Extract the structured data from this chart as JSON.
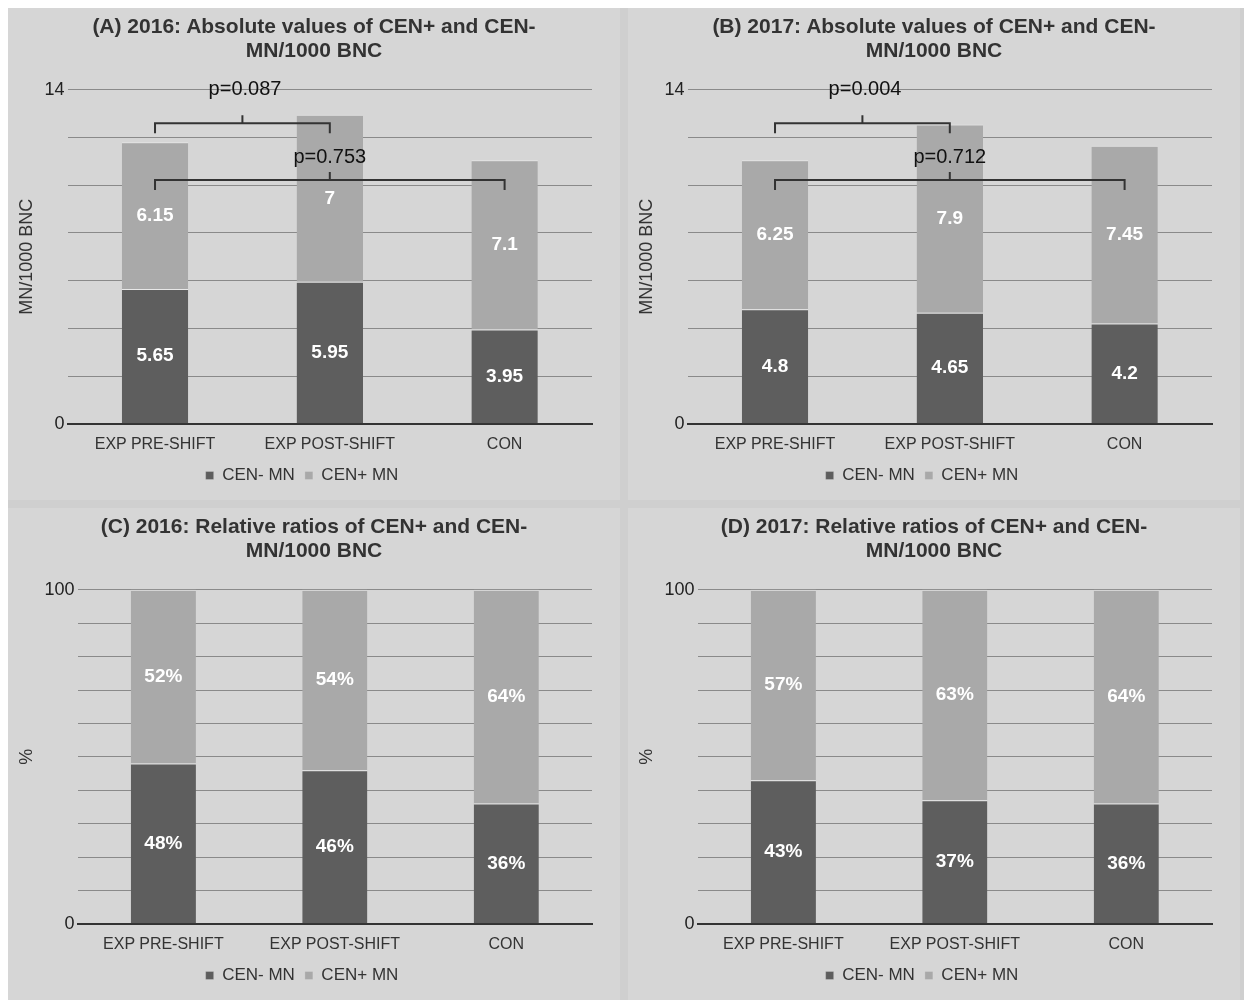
{
  "chart_data": [
    {
      "type": "bar",
      "title": "(A) 2016: Absolute values of CEN+ and CEN- MN/1000 BNC",
      "ylabel": "MN/1000 BNC",
      "categories": [
        "EXP PRE-SHIFT",
        "EXP POST-SHIFT",
        "CON"
      ],
      "stacked": true,
      "ylim": [
        0,
        14
      ],
      "yticks": [
        0,
        {
          "value": 2,
          "label": null
        },
        {
          "value": 4,
          "label": null
        },
        {
          "value": 6,
          "label": null
        },
        {
          "value": 8,
          "label": null
        },
        {
          "value": 10,
          "label": null
        },
        {
          "value": 12,
          "label": null
        },
        14
      ],
      "grid": "y",
      "legend": "bottom",
      "data_labels": true,
      "annotations": [
        "p=0.087",
        "p=0.753"
      ],
      "series": [
        {
          "name": "CEN- MN",
          "color": "#5e5e5e",
          "values": [
            5.65,
            5.95,
            3.95
          ]
        },
        {
          "name": "CEN+ MN",
          "color": "#a9a9a9",
          "values": [
            6.15,
            7,
            7.1
          ]
        }
      ]
    },
    {
      "type": "bar",
      "title": "(B) 2017: Absolute values of CEN+ and CEN- MN/1000 BNC",
      "ylabel": "MN/1000 BNC",
      "categories": [
        "EXP PRE-SHIFT",
        "EXP POST-SHIFT",
        "CON"
      ],
      "stacked": true,
      "ylim": [
        0,
        14
      ],
      "yticks": [
        0,
        {
          "value": 2,
          "label": null
        },
        {
          "value": 4,
          "label": null
        },
        {
          "value": 6,
          "label": null
        },
        {
          "value": 8,
          "label": null
        },
        {
          "value": 10,
          "label": null
        },
        {
          "value": 12,
          "label": null
        },
        14
      ],
      "grid": "y",
      "legend": "bottom",
      "data_labels": true,
      "annotations": [
        "p=0.004",
        "p=0.712"
      ],
      "series": [
        {
          "name": "CEN- MN",
          "color": "#5e5e5e",
          "values": [
            4.8,
            4.65,
            4.2
          ]
        },
        {
          "name": "CEN+ MN",
          "color": "#a9a9a9",
          "values": [
            6.25,
            7.9,
            7.45
          ]
        }
      ]
    },
    {
      "type": "bar",
      "title": "(C) 2016: Relative ratios of CEN+ and CEN- MN/1000 BNC",
      "ylabel": "%",
      "categories": [
        "EXP PRE-SHIFT",
        "EXP POST-SHIFT",
        "CON"
      ],
      "stacked": true,
      "ylim": [
        0,
        100
      ],
      "yticks": [
        0,
        {
          "value": 10,
          "label": null
        },
        {
          "value": 20,
          "label": null
        },
        {
          "value": 30,
          "label": null
        },
        {
          "value": 40,
          "label": null
        },
        {
          "value": 50,
          "label": null
        },
        {
          "value": 60,
          "label": null
        },
        {
          "value": 70,
          "label": null
        },
        {
          "value": 80,
          "label": null
        },
        {
          "value": 90,
          "label": null
        },
        100
      ],
      "grid": "y",
      "legend": "bottom",
      "series": [
        {
          "name": "CEN- MN",
          "color": "#5e5e5e",
          "values": [
            48,
            46,
            36
          ],
          "value_labels": [
            "48%",
            "46%",
            "36%"
          ]
        },
        {
          "name": "CEN+ MN",
          "color": "#a9a9a9",
          "values": [
            52,
            54,
            64
          ],
          "value_labels": [
            "52%",
            "54%",
            "64%"
          ]
        }
      ]
    },
    {
      "type": "bar",
      "title": "(D) 2017: Relative ratios of CEN+ and CEN- MN/1000 BNC",
      "ylabel": "%",
      "categories": [
        "EXP PRE-SHIFT",
        "EXP POST-SHIFT",
        "CON"
      ],
      "stacked": true,
      "ylim": [
        0,
        100
      ],
      "yticks": [
        0,
        {
          "value": 10,
          "label": null
        },
        {
          "value": 20,
          "label": null
        },
        {
          "value": 30,
          "label": null
        },
        {
          "value": 40,
          "label": null
        },
        {
          "value": 50,
          "label": null
        },
        {
          "value": 60,
          "label": null
        },
        {
          "value": 70,
          "label": null
        },
        {
          "value": 80,
          "label": null
        },
        {
          "value": 90,
          "label": null
        },
        100
      ],
      "grid": "y",
      "legend": "bottom",
      "series": [
        {
          "name": "CEN- MN",
          "color": "#5e5e5e",
          "values": [
            43,
            37,
            36
          ],
          "value_labels": [
            "43%",
            "37%",
            "36%"
          ]
        },
        {
          "name": "CEN+ MN",
          "color": "#a9a9a9",
          "values": [
            57,
            63,
            64
          ],
          "value_labels": [
            "57%",
            "63%",
            "64%"
          ]
        }
      ]
    }
  ]
}
